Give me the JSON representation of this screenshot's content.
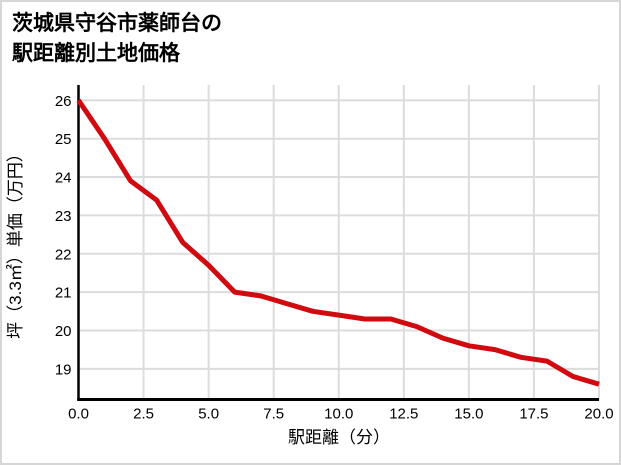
{
  "title": {
    "line1": "茨城県守谷市薬師台の",
    "line2": "駅距離別土地価格"
  },
  "chart_data": {
    "type": "line",
    "title": "茨城県守谷市薬師台の駅距離別土地価格",
    "xlabel": "駅距離（分）",
    "ylabel": "坪（3.3㎡）単価（万円）",
    "x": [
      0,
      1,
      2,
      3,
      4,
      5,
      6,
      7,
      8,
      9,
      10,
      11,
      12,
      13,
      14,
      15,
      16,
      17,
      18,
      19,
      20
    ],
    "values": [
      26.0,
      25.0,
      23.9,
      23.4,
      22.3,
      21.7,
      21.0,
      20.9,
      20.7,
      20.5,
      20.4,
      20.3,
      20.3,
      20.1,
      19.8,
      19.6,
      19.5,
      19.3,
      19.2,
      18.8,
      18.6
    ],
    "x_tick_values": [
      0,
      2.5,
      5,
      7.5,
      10,
      12.5,
      15,
      17.5,
      20
    ],
    "x_tick_labels": [
      "0.0",
      "2.5",
      "5.0",
      "7.5",
      "10.0",
      "12.5",
      "15.0",
      "17.5",
      "20.0"
    ],
    "y_tick_values": [
      19,
      20,
      21,
      22,
      23,
      24,
      25,
      26
    ],
    "y_tick_labels": [
      "19",
      "20",
      "21",
      "22",
      "23",
      "24",
      "25",
      "26"
    ],
    "xlim": [
      0,
      20
    ],
    "ylim": [
      18.2,
      26.4
    ],
    "grid": true,
    "legend": "none",
    "line_color": "#d10a10",
    "grid_color": "#dcdcdc",
    "axis_color": "#000000",
    "background_color": "#ffffff",
    "border_color": "#d6d6d6"
  }
}
